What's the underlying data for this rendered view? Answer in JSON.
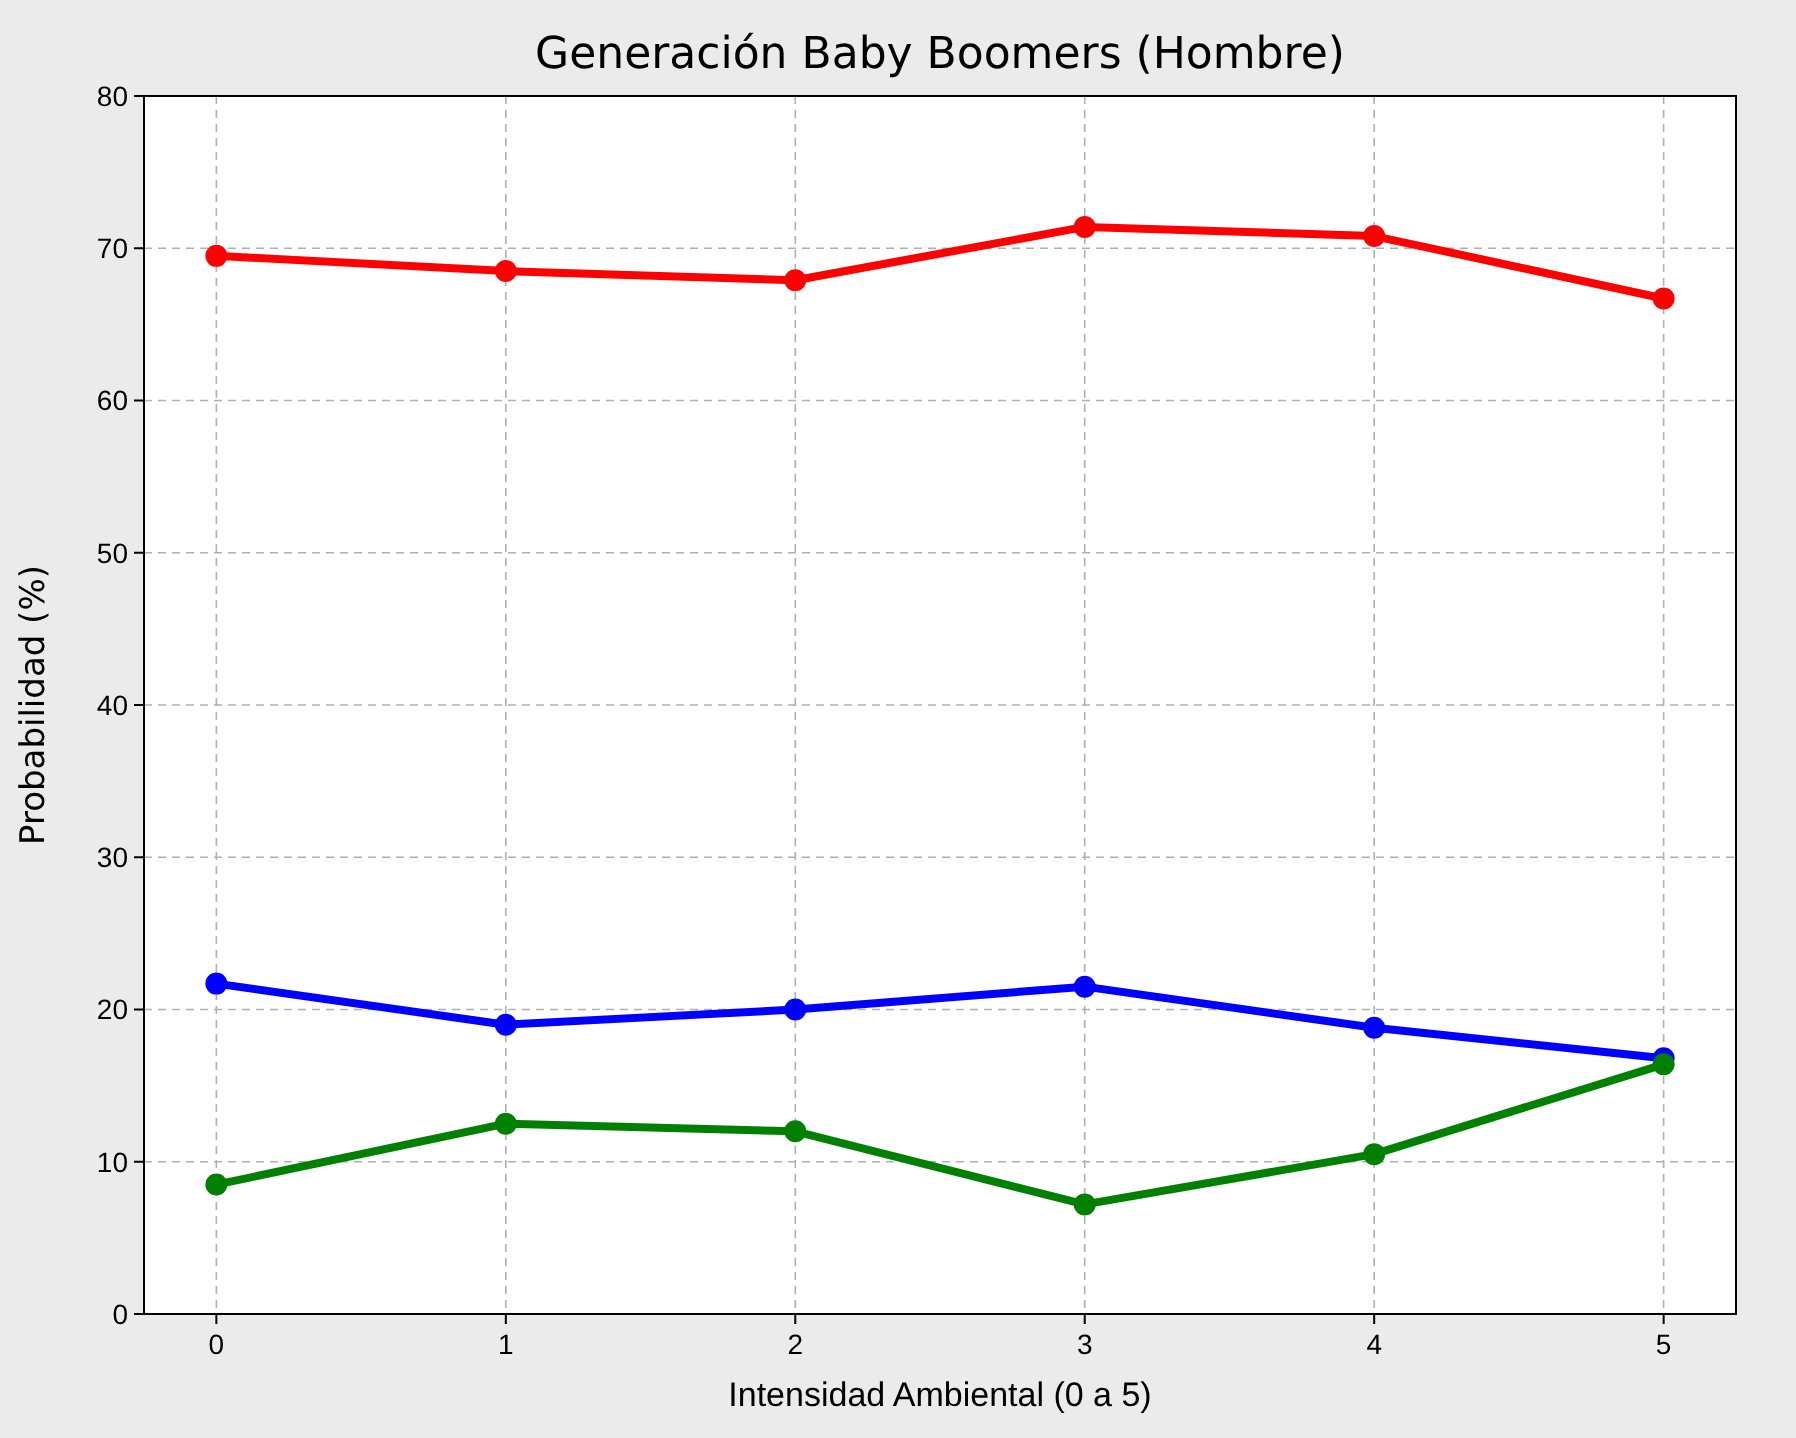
{
  "chart_data": {
    "type": "line",
    "title": "Generación Baby Boomers (Hombre)",
    "xlabel": "Intensidad Ambiental (0 a 5)",
    "ylabel": "Probabilidad (%)",
    "x": [
      0,
      1,
      2,
      3,
      4,
      5
    ],
    "series": [
      {
        "color": "#ff0000",
        "values": [
          69.5,
          68.5,
          67.9,
          71.4,
          70.8,
          66.7
        ]
      },
      {
        "color": "#0000ff",
        "values": [
          21.7,
          19.0,
          20.0,
          21.5,
          18.8,
          16.8
        ]
      },
      {
        "color": "#008000",
        "values": [
          8.5,
          12.5,
          12.0,
          7.2,
          10.5,
          16.4
        ]
      }
    ],
    "xlim": [
      -0.25,
      5.25
    ],
    "xticks": [
      0,
      1,
      2,
      3,
      4,
      5
    ],
    "ylim": [
      0,
      80
    ],
    "yticks": [
      0,
      10,
      20,
      30,
      40,
      50,
      60,
      70,
      80
    ],
    "grid": true,
    "marker": "circle",
    "line_style": "solid"
  }
}
